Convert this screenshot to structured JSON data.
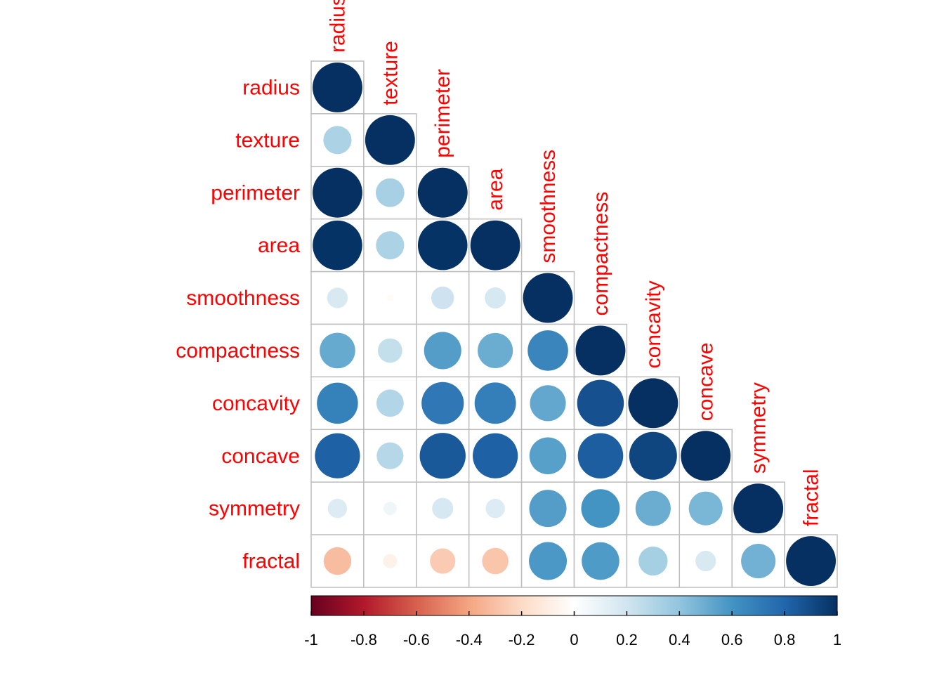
{
  "chart_data": {
    "type": "heatmap",
    "subtype": "correlation-circles-lower-triangle",
    "variables": [
      "radius",
      "texture",
      "perimeter",
      "area",
      "smoothness",
      "compactness",
      "concavity",
      "concave",
      "symmetry",
      "fractal"
    ],
    "matrix": [
      [
        1.0,
        0.32,
        1.0,
        0.99,
        0.17,
        0.51,
        0.68,
        0.82,
        0.15,
        -0.31
      ],
      [
        0.32,
        1.0,
        0.33,
        0.32,
        -0.02,
        0.24,
        0.3,
        0.29,
        0.07,
        -0.08
      ],
      [
        1.0,
        0.33,
        1.0,
        0.99,
        0.21,
        0.56,
        0.72,
        0.85,
        0.18,
        -0.26
      ],
      [
        0.99,
        0.32,
        0.99,
        1.0,
        0.18,
        0.5,
        0.69,
        0.82,
        0.15,
        -0.28
      ],
      [
        0.17,
        -0.02,
        0.21,
        0.18,
        1.0,
        0.66,
        0.52,
        0.55,
        0.56,
        0.58
      ],
      [
        0.51,
        0.24,
        0.56,
        0.5,
        0.66,
        1.0,
        0.88,
        0.83,
        0.6,
        0.57
      ],
      [
        0.68,
        0.3,
        0.72,
        0.69,
        0.52,
        0.88,
        1.0,
        0.92,
        0.5,
        0.34
      ],
      [
        0.82,
        0.29,
        0.85,
        0.82,
        0.55,
        0.83,
        0.92,
        1.0,
        0.46,
        0.17
      ],
      [
        0.15,
        0.07,
        0.18,
        0.15,
        0.56,
        0.6,
        0.5,
        0.46,
        1.0,
        0.48
      ],
      [
        -0.31,
        -0.08,
        -0.26,
        -0.28,
        0.58,
        0.57,
        0.34,
        0.17,
        0.48,
        1.0
      ]
    ],
    "color_scale": {
      "range": [
        -1,
        1
      ],
      "ticks": [
        "-1",
        "-0.8",
        "-0.6",
        "-0.4",
        "-0.2",
        "0",
        "0.2",
        "0.4",
        "0.6",
        "0.8",
        "1"
      ],
      "palette": [
        "#67001F",
        "#B2182B",
        "#D6604D",
        "#F4A582",
        "#FDDBC7",
        "#FFFFFF",
        "#D1E5F0",
        "#92C5DE",
        "#4393C3",
        "#2166AC",
        "#053061"
      ]
    },
    "label_color": "#FF0000",
    "grid_color": "#BEBEBE",
    "legend": "bottom"
  }
}
